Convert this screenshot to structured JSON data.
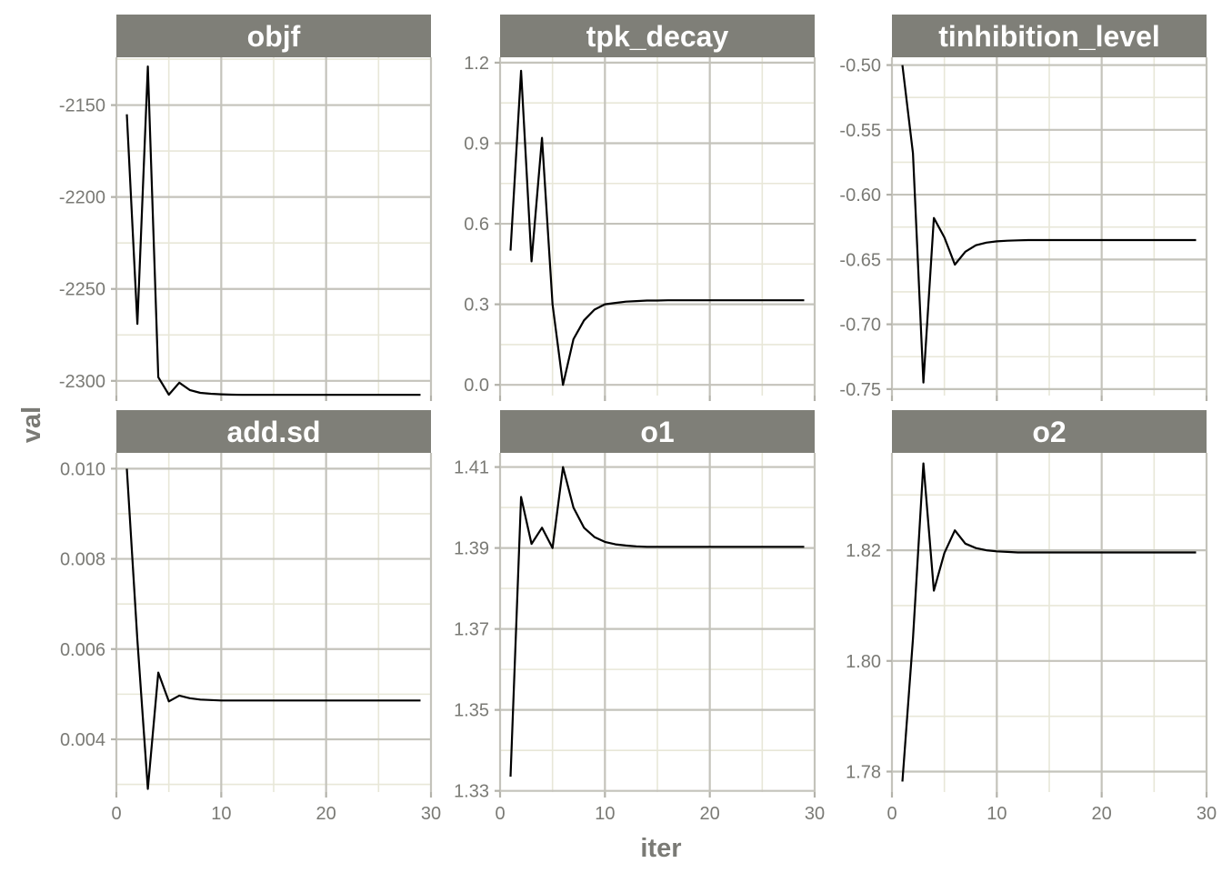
{
  "chart_data": {
    "type": "line",
    "xlabel": "iter",
    "ylabel": "val",
    "grid": true,
    "x": [
      1,
      2,
      3,
      4,
      5,
      6,
      7,
      8,
      9,
      10,
      11,
      12,
      13,
      14,
      15,
      16,
      17,
      18,
      19,
      20,
      21,
      22,
      23,
      24,
      25,
      26,
      27,
      28,
      29
    ],
    "panels": [
      {
        "title": "objf",
        "xlim": [
          0,
          30
        ],
        "ylim": [
          -2308,
          -2124
        ],
        "xticks": [
          0,
          10,
          20,
          30
        ],
        "xtick_labels": [
          "0",
          "10",
          "20",
          "30"
        ],
        "yticks": [
          -2300,
          -2250,
          -2200,
          -2150
        ],
        "ytick_labels": [
          "-2300",
          "-2250",
          "-2200",
          "-2150"
        ],
        "values": [
          -2155,
          -2269,
          -2129,
          -2298,
          -2307.5,
          -2301,
          -2305,
          -2306.5,
          -2307,
          -2307.3,
          -2307.5,
          -2307.6,
          -2307.6,
          -2307.6,
          -2307.6,
          -2307.6,
          -2307.6,
          -2307.6,
          -2307.6,
          -2307.6,
          -2307.6,
          -2307.6,
          -2307.6,
          -2307.6,
          -2307.6,
          -2307.6,
          -2307.6,
          -2307.6,
          -2307.6
        ]
      },
      {
        "title": "tpk_decay",
        "xlim": [
          0,
          30
        ],
        "ylim": [
          -0.04,
          1.22
        ],
        "xticks": [
          0,
          10,
          20,
          30
        ],
        "xtick_labels": [
          "0",
          "10",
          "20",
          "30"
        ],
        "yticks": [
          0.0,
          0.3,
          0.6,
          0.9,
          1.2
        ],
        "ytick_labels": [
          "0.0",
          "0.3",
          "0.6",
          "0.9",
          "1.2"
        ],
        "values": [
          0.5,
          1.17,
          0.46,
          0.92,
          0.3,
          0.0,
          0.17,
          0.24,
          0.28,
          0.3,
          0.305,
          0.31,
          0.312,
          0.314,
          0.314,
          0.315,
          0.315,
          0.315,
          0.315,
          0.315,
          0.315,
          0.315,
          0.315,
          0.315,
          0.315,
          0.315,
          0.315,
          0.315,
          0.315
        ]
      },
      {
        "title": "tinhibition_level",
        "xlim": [
          0,
          30
        ],
        "ylim": [
          -0.755,
          -0.494
        ],
        "xticks": [
          0,
          10,
          20,
          30
        ],
        "xtick_labels": [
          "0",
          "10",
          "20",
          "30"
        ],
        "yticks": [
          -0.75,
          -0.7,
          -0.65,
          -0.6,
          -0.55,
          -0.5
        ],
        "ytick_labels": [
          "-0.75",
          "-0.70",
          "-0.65",
          "-0.60",
          "-0.55",
          "-0.50"
        ],
        "values": [
          -0.5,
          -0.568,
          -0.745,
          -0.618,
          -0.633,
          -0.654,
          -0.644,
          -0.639,
          -0.637,
          -0.636,
          -0.6355,
          -0.6352,
          -0.635,
          -0.635,
          -0.635,
          -0.635,
          -0.635,
          -0.635,
          -0.635,
          -0.635,
          -0.635,
          -0.635,
          -0.635,
          -0.635,
          -0.635,
          -0.635,
          -0.635,
          -0.635,
          -0.635
        ]
      },
      {
        "title": "add.sd",
        "xlim": [
          0,
          30
        ],
        "ylim": [
          0.00283,
          0.01035
        ],
        "xticks": [
          0,
          10,
          20,
          30
        ],
        "xtick_labels": [
          "0",
          "10",
          "20",
          "30"
        ],
        "yticks": [
          0.004,
          0.006,
          0.008,
          0.01
        ],
        "ytick_labels": [
          "0.004",
          "0.006",
          "0.008",
          "0.010"
        ],
        "values": [
          0.01,
          0.0062,
          0.0029,
          0.00548,
          0.00484,
          0.00497,
          0.00491,
          0.00488,
          0.00487,
          0.00486,
          0.00486,
          0.00486,
          0.00486,
          0.00486,
          0.00486,
          0.00486,
          0.00486,
          0.00486,
          0.00486,
          0.00486,
          0.00486,
          0.00486,
          0.00486,
          0.00486,
          0.00486,
          0.00486,
          0.00486,
          0.00486,
          0.00486
        ]
      },
      {
        "title": "o1",
        "xlim": [
          0,
          30
        ],
        "ylim": [
          1.3297,
          1.4135
        ],
        "xticks": [
          0,
          10,
          20,
          30
        ],
        "xtick_labels": [
          "0",
          "10",
          "20",
          "30"
        ],
        "yticks": [
          1.33,
          1.35,
          1.37,
          1.39,
          1.41
        ],
        "ytick_labels": [
          "1.33",
          "1.35",
          "1.37",
          "1.39",
          "1.41"
        ],
        "values": [
          1.3335,
          1.4026,
          1.391,
          1.395,
          1.39,
          1.41,
          1.4,
          1.395,
          1.3927,
          1.3915,
          1.3909,
          1.3906,
          1.3904,
          1.3903,
          1.3903,
          1.3903,
          1.3903,
          1.3903,
          1.3903,
          1.3903,
          1.3903,
          1.3903,
          1.3903,
          1.3903,
          1.3903,
          1.3903,
          1.3903,
          1.3903,
          1.3903
        ]
      },
      {
        "title": "o2",
        "xlim": [
          0,
          30
        ],
        "ylim": [
          1.7763,
          1.8376
        ],
        "xticks": [
          0,
          10,
          20,
          30
        ],
        "xtick_labels": [
          "0",
          "10",
          "20",
          "30"
        ],
        "yticks": [
          1.78,
          1.8,
          1.82
        ],
        "ytick_labels": [
          "1.78",
          "1.80",
          "1.82"
        ],
        "values": [
          1.7782,
          1.804,
          1.8357,
          1.8127,
          1.8195,
          1.8236,
          1.8212,
          1.8204,
          1.82,
          1.8198,
          1.8197,
          1.8196,
          1.8196,
          1.8196,
          1.8196,
          1.8196,
          1.8196,
          1.8196,
          1.8196,
          1.8196,
          1.8196,
          1.8196,
          1.8196,
          1.8196,
          1.8196,
          1.8196,
          1.8196,
          1.8196,
          1.8196
        ]
      }
    ]
  }
}
